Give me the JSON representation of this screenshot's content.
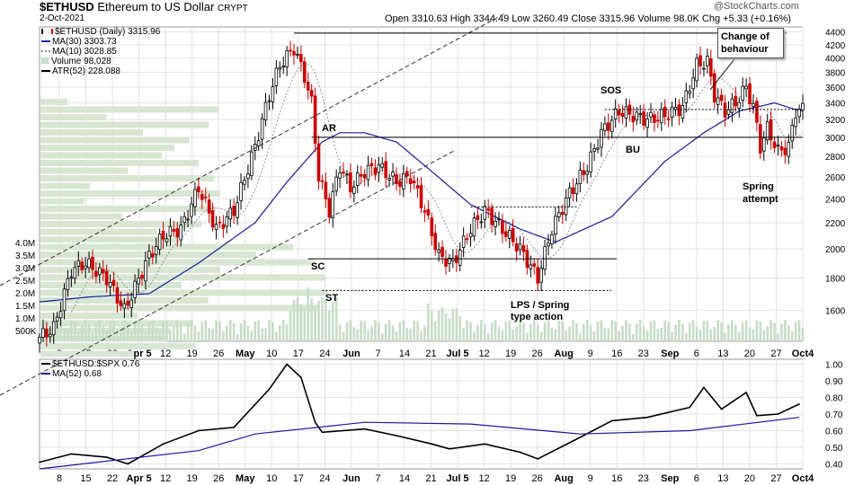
{
  "header": {
    "symbol": "$ETHUSD",
    "name": "Ethereum to US Dollar",
    "exchange": "CRYPT",
    "date": "2-Oct-2021",
    "quote": "Open 3310.63  High 3344.49  Low 3260.49  Close 3315.96  Volume 98.0K  Chg +5.33 (+0.16%)",
    "watermark": "@StockCharts.com"
  },
  "legend": {
    "main": "$ETHUSD (Daily) 3315.96",
    "ma30": "MA(30) 3303.73",
    "ma10": "MA(10) 3028.85",
    "volume": "Volume 98,028",
    "atr": "ATR(52) 228.088"
  },
  "colors": {
    "up": "#000000",
    "down": "#cc0000",
    "ma30": "#1a1aa0",
    "ma10": "#909090",
    "volume": "#c8dcc8",
    "vbp": "#d7e6d2",
    "grid": "#e2e2e2"
  },
  "annotations": {
    "change_of_behaviour": "Change of behaviour",
    "sos": "SOS",
    "bu": "BU",
    "spring_attempt": "Spring attempt",
    "ar": "AR",
    "sc": "SC",
    "st": "ST",
    "lps": "LPS / Spring type action"
  },
  "chart_data": [
    {
      "type": "candlestick",
      "title": "$ETHUSD Ethereum to US Dollar (Daily)",
      "x_ticks": [
        "8",
        "15",
        "22",
        "Apr 5",
        "12",
        "19",
        "26",
        "May",
        "10",
        "17",
        "24",
        "Jun",
        "7",
        "14",
        "21",
        "Jul 5",
        "12",
        "19",
        "26",
        "Aug",
        "9",
        "16",
        "23",
        "Sep",
        "6",
        "13",
        "20",
        "27",
        "Oct4"
      ],
      "y_ticks": [
        1600,
        1800,
        2000,
        2200,
        2400,
        2600,
        2800,
        3000,
        3200,
        3400,
        3600,
        3800,
        4000,
        4200,
        4400
      ],
      "y_scale": "log",
      "ylim": [
        1430,
        4480
      ],
      "price_path": [
        {
          "date": "Mar 1",
          "price": 1450
        },
        {
          "date": "Mar 5",
          "price": 1500
        },
        {
          "date": "Mar 10",
          "price": 1850
        },
        {
          "date": "Mar 14",
          "price": 1900
        },
        {
          "date": "Mar 20",
          "price": 1800
        },
        {
          "date": "Mar 25",
          "price": 1600
        },
        {
          "date": "Apr 1",
          "price": 1950
        },
        {
          "date": "Apr 5",
          "price": 2100
        },
        {
          "date": "Apr 10",
          "price": 2150
        },
        {
          "date": "Apr 15",
          "price": 2500
        },
        {
          "date": "Apr 20",
          "price": 2150
        },
        {
          "date": "Apr 25",
          "price": 2300
        },
        {
          "date": "May 1",
          "price": 2900
        },
        {
          "date": "May 5",
          "price": 3500
        },
        {
          "date": "May 8",
          "price": 3900
        },
        {
          "date": "May 12",
          "price": 4150
        },
        {
          "date": "May 15",
          "price": 3750
        },
        {
          "date": "May 17",
          "price": 3400
        },
        {
          "date": "May 19",
          "price": 2600
        },
        {
          "date": "May 22",
          "price": 2300
        },
        {
          "date": "May 25",
          "price": 2700
        },
        {
          "date": "May 28",
          "price": 2500
        },
        {
          "date": "Jun 1",
          "price": 2650
        },
        {
          "date": "Jun 5",
          "price": 2700
        },
        {
          "date": "Jun 10",
          "price": 2550
        },
        {
          "date": "Jun 14",
          "price": 2600
        },
        {
          "date": "Jun 18",
          "price": 2300
        },
        {
          "date": "Jun 22",
          "price": 1950
        },
        {
          "date": "Jun 26",
          "price": 1900
        },
        {
          "date": "Jul 1",
          "price": 2150
        },
        {
          "date": "Jul 5",
          "price": 2300
        },
        {
          "date": "Jul 10",
          "price": 2150
        },
        {
          "date": "Jul 15",
          "price": 2000
        },
        {
          "date": "Jul 20",
          "price": 1800
        },
        {
          "date": "Jul 24",
          "price": 2150
        },
        {
          "date": "Jul 29",
          "price": 2450
        },
        {
          "date": "Aug 3",
          "price": 2700
        },
        {
          "date": "Aug 7",
          "price": 3050
        },
        {
          "date": "Aug 12",
          "price": 3300
        },
        {
          "date": "Aug 16",
          "price": 3250
        },
        {
          "date": "Aug 20",
          "price": 3200
        },
        {
          "date": "Aug 25",
          "price": 3250
        },
        {
          "date": "Aug 30",
          "price": 3350
        },
        {
          "date": "Sep 3",
          "price": 3900
        },
        {
          "date": "Sep 6",
          "price": 3950
        },
        {
          "date": "Sep 8",
          "price": 3500
        },
        {
          "date": "Sep 11",
          "price": 3300
        },
        {
          "date": "Sep 14",
          "price": 3400
        },
        {
          "date": "Sep 17",
          "price": 3600
        },
        {
          "date": "Sep 19",
          "price": 3350
        },
        {
          "date": "Sep 21",
          "price": 2900
        },
        {
          "date": "Sep 23",
          "price": 3100
        },
        {
          "date": "Sep 26",
          "price": 2850
        },
        {
          "date": "Sep 29",
          "price": 2900
        },
        {
          "date": "Oct 1",
          "price": 3300
        },
        {
          "date": "Oct 2",
          "price": 3316
        }
      ],
      "ma30_path": [
        {
          "date": "Mar 1",
          "price": 1650
        },
        {
          "date": "Mar 15",
          "price": 1680
        },
        {
          "date": "Apr 1",
          "price": 1700
        },
        {
          "date": "Apr 15",
          "price": 1900
        },
        {
          "date": "May 1",
          "price": 2200
        },
        {
          "date": "May 10",
          "price": 2550
        },
        {
          "date": "May 20",
          "price": 2950
        },
        {
          "date": "May 25",
          "price": 3050
        },
        {
          "date": "Jun 1",
          "price": 3050
        },
        {
          "date": "Jun 10",
          "price": 2950
        },
        {
          "date": "Jun 20",
          "price": 2650
        },
        {
          "date": "Jul 1",
          "price": 2350
        },
        {
          "date": "Jul 15",
          "price": 2150
        },
        {
          "date": "Jul 25",
          "price": 2050
        },
        {
          "date": "Aug 10",
          "price": 2250
        },
        {
          "date": "Aug 25",
          "price": 2750
        },
        {
          "date": "Sep 5",
          "price": 3050
        },
        {
          "date": "Sep 15",
          "price": 3300
        },
        {
          "date": "Sep 25",
          "price": 3400
        },
        {
          "date": "Oct 2",
          "price": 3304
        }
      ],
      "horizontal_levels": [
        4380,
        3000,
        1930,
        1720,
        2330,
        3320
      ],
      "volume_axis_ticks": [
        "4.0M",
        "3.5M",
        "3.0M",
        "2.5M",
        "2.0M",
        "1.5M",
        "1.0M",
        "500K"
      ]
    },
    {
      "type": "line",
      "title": "$ETHUSD:$SPX 0.76",
      "series": [
        {
          "name": "$ETHUSD:$SPX",
          "x": [
            "Mar 1",
            "Mar 10",
            "Mar 20",
            "Mar 26",
            "Apr 5",
            "Apr 15",
            "Apr 25",
            "May 5",
            "May 10",
            "May 14",
            "May 18",
            "May 20",
            "Jun 1",
            "Jun 10",
            "Jun 20",
            "Jun 25",
            "Jul 5",
            "Jul 15",
            "Jul 20",
            "Aug 1",
            "Aug 10",
            "Aug 20",
            "Sep 1",
            "Sep 5",
            "Sep 10",
            "Sep 17",
            "Sep 20",
            "Sep 26",
            "Oct 2"
          ],
          "values": [
            0.41,
            0.46,
            0.44,
            0.4,
            0.52,
            0.6,
            0.62,
            0.85,
            1.0,
            0.92,
            0.65,
            0.59,
            0.61,
            0.57,
            0.52,
            0.49,
            0.52,
            0.47,
            0.43,
            0.56,
            0.66,
            0.68,
            0.74,
            0.86,
            0.73,
            0.83,
            0.69,
            0.7,
            0.76
          ]
        },
        {
          "name": "MA(52)",
          "x": [
            "Mar 1",
            "Apr 15",
            "May 1",
            "Jun 1",
            "Jul 1",
            "Aug 1",
            "Sep 1",
            "Oct 2"
          ],
          "values": [
            0.37,
            0.48,
            0.58,
            0.65,
            0.64,
            0.58,
            0.6,
            0.68
          ]
        }
      ],
      "legend": [
        "$ETHUSD:$SPX 0.76",
        "MA(52) 0.68"
      ],
      "y_ticks": [
        0.4,
        0.5,
        0.6,
        0.7,
        0.8,
        0.9,
        1.0
      ],
      "ylim": [
        0.37,
        1.03
      ]
    }
  ]
}
